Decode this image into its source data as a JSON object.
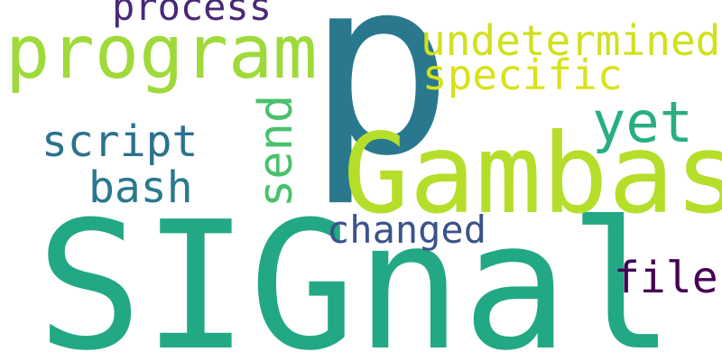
{
  "background": "#ffffff",
  "words": {
    "signal": {
      "text": "SIGnal",
      "color": "#22a884"
    },
    "p": {
      "text": "p",
      "color": "#2a788e"
    },
    "gambas": {
      "text": "Gambas",
      "color": "#b5de2b"
    },
    "program": {
      "text": "program",
      "color": "#9fda3a"
    },
    "undetermined": {
      "text": "undetermined",
      "color": "#d0e11c"
    },
    "specific": {
      "text": "specific",
      "color": "#d8e219"
    },
    "yet": {
      "text": "yet",
      "color": "#29af7f"
    },
    "send": {
      "text": "send",
      "color": "#4ac16d"
    },
    "process": {
      "text": "process",
      "color": "#482878"
    },
    "script": {
      "text": "script",
      "color": "#2c728e"
    },
    "bash": {
      "text": "bash",
      "color": "#2a788e"
    },
    "changed": {
      "text": "changed",
      "color": "#3b528b"
    },
    "file": {
      "text": "file",
      "color": "#440154"
    }
  }
}
